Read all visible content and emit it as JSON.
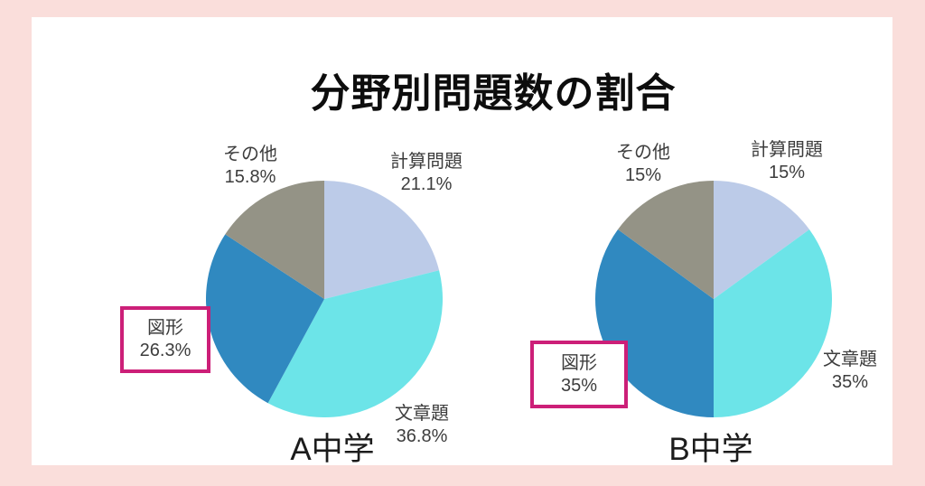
{
  "title": "分野別問題数の割合",
  "colors": {
    "background": "#fadedb",
    "panel": "#ffffff",
    "highlight_border": "#cc1f78",
    "slice_calculation": "#bccbe8",
    "slice_word_problem": "#6ce4e8",
    "slice_geometry": "#3089c0",
    "slice_other": "#949386",
    "label_text": "#3d3d3d",
    "title_text": "#0d0d0d"
  },
  "chart_data": [
    {
      "type": "pie",
      "title": "A中学",
      "categories": [
        "計算問題",
        "文章題",
        "図形",
        "その他"
      ],
      "values": [
        21.1,
        36.8,
        26.3,
        15.8
      ],
      "labels": [
        "21.1%",
        "36.8%",
        "26.3%",
        "15.8%"
      ],
      "colors": [
        "#bccbe8",
        "#6ce4e8",
        "#3089c0",
        "#949386"
      ],
      "start_angle_deg": 0,
      "direction": "clockwise",
      "legend": "none",
      "highlighted_category": "図形"
    },
    {
      "type": "pie",
      "title": "B中学",
      "categories": [
        "計算問題",
        "文章題",
        "図形",
        "その他"
      ],
      "values": [
        15,
        35,
        35,
        15
      ],
      "labels": [
        "15%",
        "35%",
        "35%",
        "15%"
      ],
      "colors": [
        "#bccbe8",
        "#6ce4e8",
        "#3089c0",
        "#949386"
      ],
      "start_angle_deg": 0,
      "direction": "clockwise",
      "legend": "none",
      "highlighted_category": "図形"
    }
  ]
}
